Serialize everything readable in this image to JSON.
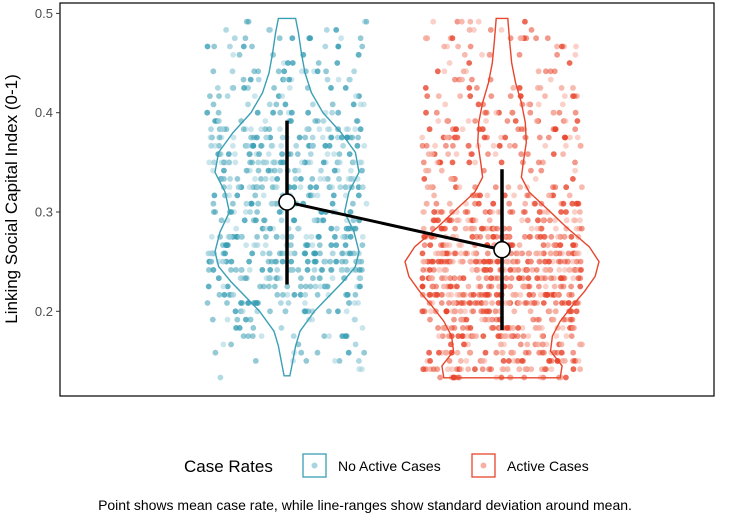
{
  "chart_data": {
    "type": "violin-jitter",
    "ylabel": "Linking Social Capital Index (0-1)",
    "ylim": [
      0.133,
      0.5
    ],
    "y_ticks": [
      0.2,
      0.3,
      0.4,
      0.5
    ],
    "y_tick_labels": [
      "0.2",
      "0.3",
      "0.4",
      "0.5"
    ],
    "grid": false,
    "legend_title": "Case Rates",
    "legend_position": "bottom",
    "caption": "Point shows mean case rate, while line-ranges show standard deviation around mean.",
    "series": [
      {
        "name": "No Active Cases",
        "color": "#3a9fb5",
        "fill": "#9ed0dc",
        "mean": 0.31,
        "sd_low": 0.227,
        "sd_high": 0.392,
        "y_min": 0.135,
        "y_max": 0.495,
        "density": [
          [
            0.135,
            0.04
          ],
          [
            0.15,
            0.08
          ],
          [
            0.165,
            0.12
          ],
          [
            0.18,
            0.18
          ],
          [
            0.2,
            0.38
          ],
          [
            0.215,
            0.58
          ],
          [
            0.23,
            0.78
          ],
          [
            0.245,
            0.95
          ],
          [
            0.26,
            1.0
          ],
          [
            0.28,
            0.93
          ],
          [
            0.3,
            0.8
          ],
          [
            0.32,
            0.86
          ],
          [
            0.34,
            1.0
          ],
          [
            0.36,
            0.95
          ],
          [
            0.38,
            0.75
          ],
          [
            0.4,
            0.5
          ],
          [
            0.42,
            0.34
          ],
          [
            0.44,
            0.25
          ],
          [
            0.46,
            0.2
          ],
          [
            0.48,
            0.16
          ],
          [
            0.495,
            0.12
          ]
        ]
      },
      {
        "name": "Active Cases",
        "color": "#e8452c",
        "fill": "#f5a99a",
        "mean": 0.262,
        "sd_low": 0.181,
        "sd_high": 0.343,
        "y_min": 0.133,
        "y_max": 0.495,
        "density": [
          [
            0.133,
            0.6
          ],
          [
            0.145,
            0.62
          ],
          [
            0.16,
            0.5
          ],
          [
            0.175,
            0.52
          ],
          [
            0.19,
            0.6
          ],
          [
            0.205,
            0.72
          ],
          [
            0.22,
            0.85
          ],
          [
            0.235,
            0.96
          ],
          [
            0.25,
            1.0
          ],
          [
            0.265,
            0.9
          ],
          [
            0.285,
            0.66
          ],
          [
            0.3,
            0.5
          ],
          [
            0.32,
            0.28
          ],
          [
            0.335,
            0.2
          ],
          [
            0.35,
            0.22
          ],
          [
            0.37,
            0.25
          ],
          [
            0.39,
            0.24
          ],
          [
            0.41,
            0.2
          ],
          [
            0.43,
            0.14
          ],
          [
            0.45,
            0.1
          ],
          [
            0.47,
            0.08
          ],
          [
            0.495,
            0.06
          ]
        ]
      }
    ]
  }
}
